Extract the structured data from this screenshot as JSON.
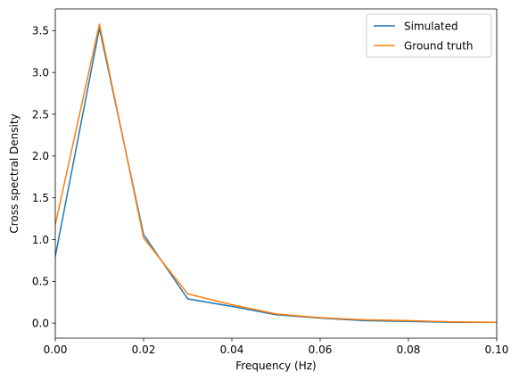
{
  "chart_data": {
    "type": "line",
    "title": "",
    "xlabel": "Frequency (Hz)",
    "ylabel": "Cross spectral Density",
    "xlim": [
      0,
      0.1
    ],
    "ylim": [
      -0.18,
      3.76
    ],
    "xticks": [
      0,
      0.02,
      0.04,
      0.06,
      0.08,
      0.1
    ],
    "xtick_labels": [
      "0.00",
      "0.02",
      "0.04",
      "0.06",
      "0.08",
      "0.10"
    ],
    "yticks": [
      0,
      0.5,
      1.0,
      1.5,
      2.0,
      2.5,
      3.0,
      3.5
    ],
    "ytick_labels": [
      "0.0",
      "0.5",
      "1.0",
      "1.5",
      "2.0",
      "2.5",
      "3.0",
      "3.5"
    ],
    "grid": false,
    "legend_position": "top-right",
    "x": [
      0,
      0.01,
      0.02,
      0.03,
      0.04,
      0.05,
      0.06,
      0.07,
      0.08,
      0.09,
      0.1
    ],
    "series": [
      {
        "name": "Simulated",
        "color": "#1f77b4",
        "values": [
          0.8,
          3.53,
          1.06,
          0.29,
          0.2,
          0.1,
          0.06,
          0.03,
          0.02,
          0.01,
          0.01
        ]
      },
      {
        "name": "Ground truth",
        "color": "#ff7f0e",
        "values": [
          1.18,
          3.58,
          1.02,
          0.35,
          0.22,
          0.11,
          0.065,
          0.04,
          0.03,
          0.015,
          0.01
        ]
      }
    ]
  }
}
